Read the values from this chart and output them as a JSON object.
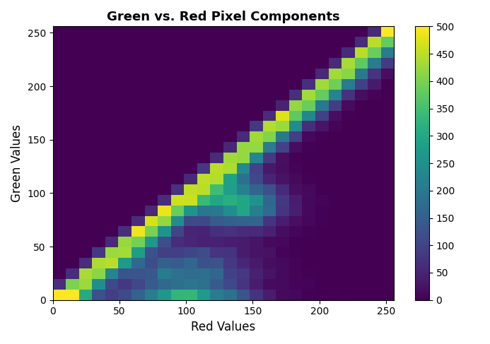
{
  "title": "Green vs. Red Pixel Components",
  "xlabel": "Red Values",
  "ylabel": "Green Values",
  "xlim": [
    0,
    256
  ],
  "ylim": [
    0,
    256
  ],
  "bins": 26,
  "colormap": "viridis",
  "vmin": 0,
  "vmax": 500,
  "colorbar_ticks": [
    0,
    50,
    100,
    150,
    200,
    250,
    300,
    350,
    400,
    450,
    500
  ],
  "figsize": [
    6.93,
    4.87
  ],
  "dpi": 100,
  "seed": 42,
  "n_main": 50000,
  "n_low": 8000,
  "n_mid": 6000
}
